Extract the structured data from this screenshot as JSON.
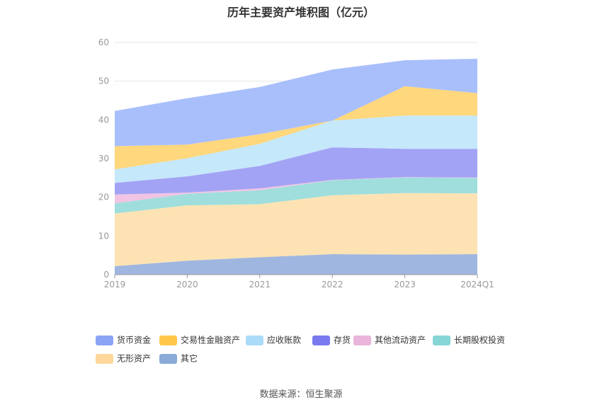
{
  "chart_data": {
    "type": "area",
    "stacked": true,
    "title": "历年主要资产堆积图（亿元）",
    "categories": [
      "2019",
      "2020",
      "2021",
      "2022",
      "2023",
      "2024Q1"
    ],
    "ylim": [
      0,
      60
    ],
    "yticks": [
      0,
      10,
      20,
      30,
      40,
      50,
      60
    ],
    "grid": true,
    "legend_position": "bottom",
    "series": [
      {
        "name": "其它",
        "color": "#9fb7e0",
        "values": [
          2.2,
          3.6,
          4.5,
          5.3,
          5.2,
          5.3
        ]
      },
      {
        "name": "无形资产",
        "color": "#fde3b3",
        "values": [
          13.6,
          14.3,
          13.7,
          15.2,
          15.9,
          15.7
        ]
      },
      {
        "name": "长期股权投资",
        "color": "#9fdedd",
        "values": [
          2.6,
          3.0,
          3.6,
          3.9,
          4.0,
          4.0
        ]
      },
      {
        "name": "其他流动资产",
        "color": "#f0c4e2",
        "values": [
          2.3,
          0.3,
          0.5,
          0.1,
          0.1,
          0.1
        ]
      },
      {
        "name": "存货",
        "color": "#a3a3f5",
        "values": [
          3.0,
          4.2,
          5.8,
          8.4,
          7.3,
          7.4
        ]
      },
      {
        "name": "应收账款",
        "color": "#c5e8fb",
        "values": [
          3.5,
          4.7,
          5.7,
          6.9,
          8.6,
          8.6
        ]
      },
      {
        "name": "交易性金融资产",
        "color": "#ffd77c",
        "values": [
          6.0,
          3.5,
          2.5,
          0.0,
          7.6,
          5.8
        ]
      },
      {
        "name": "货币资金",
        "color": "#a9bffc",
        "values": [
          9.1,
          12.0,
          12.2,
          13.2,
          6.7,
          8.9
        ]
      }
    ]
  },
  "legend": {
    "items": [
      {
        "label": "货币资金",
        "color": "#8ca4f5"
      },
      {
        "label": "交易性金融资产",
        "color": "#ffc84a"
      },
      {
        "label": "应收账款",
        "color": "#aadcf8"
      },
      {
        "label": "存货",
        "color": "#7a7aee"
      },
      {
        "label": "其他流动资产",
        "color": "#e9b5da"
      },
      {
        "label": "长期股权投资",
        "color": "#86d6d5"
      },
      {
        "label": "无形资产",
        "color": "#fdd89a"
      },
      {
        "label": "其它",
        "color": "#8aaad8"
      }
    ]
  },
  "source_text": "数据来源：恒生聚源"
}
